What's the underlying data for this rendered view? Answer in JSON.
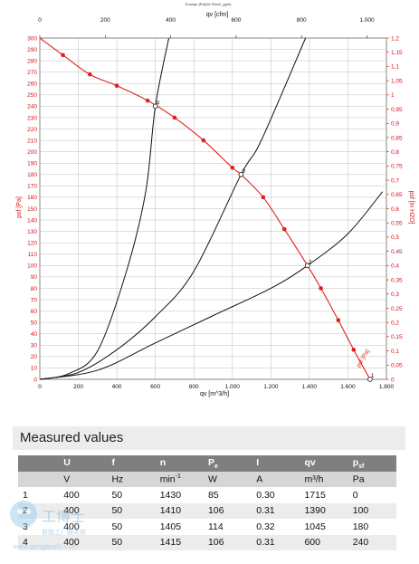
{
  "chart_data": {
    "type": "line",
    "title": "Druckpr [Pa]/Ve Flow/l_(gzh)",
    "x_bottom": {
      "label": "qv [m^3/h]",
      "range": [
        0,
        1800
      ],
      "ticks": [
        "0",
        "200",
        "400",
        "600",
        "800",
        "1.000",
        "1.200",
        "1.400",
        "1.600",
        "1.800"
      ]
    },
    "x_top": {
      "label": "qv [cfm]",
      "range": [
        0,
        1059
      ],
      "ticks": [
        "0",
        "200",
        "400",
        "600",
        "800",
        "1.000"
      ]
    },
    "y_left": {
      "label": "psf [Pa]",
      "range": [
        0,
        300
      ],
      "ticks": [
        "0",
        "10",
        "20",
        "30",
        "40",
        "50",
        "60",
        "70",
        "80",
        "90",
        "100",
        "110",
        "120",
        "130",
        "140",
        "150",
        "160",
        "170",
        "180",
        "190",
        "200",
        "210",
        "220",
        "230",
        "240",
        "250",
        "260",
        "270",
        "280",
        "290",
        "300"
      ]
    },
    "y_right": {
      "label": "psf [in H2O]",
      "range": [
        0,
        1.2
      ],
      "ticks": [
        "0",
        "0,05",
        "0,1",
        "0,15",
        "0,2",
        "0,25",
        "0,3",
        "0,35",
        "0,4",
        "0,45",
        "0,5",
        "0,55",
        "0,6",
        "0,65",
        "0,7",
        "0,75",
        "0,8",
        "0,85",
        "0,9",
        "0,95",
        "1",
        "1,05",
        "1,1",
        "1,15",
        "1,2"
      ]
    },
    "fan_curve": {
      "name": "psf [Pa]",
      "points": [
        [
          0,
          300
        ],
        [
          120,
          285
        ],
        [
          260,
          268
        ],
        [
          400,
          258
        ],
        [
          560,
          245
        ],
        [
          700,
          230
        ],
        [
          850,
          210
        ],
        [
          1000,
          186
        ],
        [
          1045,
          180
        ],
        [
          1160,
          160
        ],
        [
          1270,
          132
        ],
        [
          1390,
          100
        ],
        [
          1460,
          80
        ],
        [
          1550,
          52
        ],
        [
          1630,
          26
        ],
        [
          1715,
          0
        ]
      ]
    },
    "system_curves": [
      {
        "x": [
          0,
          150,
          300,
          450,
          550,
          600,
          670
        ],
        "y": [
          0,
          5,
          25,
          95,
          165,
          240,
          300
        ]
      },
      {
        "x": [
          0,
          200,
          400,
          600,
          800,
          1045,
          1150,
          1380
        ],
        "y": [
          0,
          6,
          26,
          55,
          95,
          180,
          210,
          300
        ]
      },
      {
        "x": [
          0,
          300,
          600,
          900,
          1200,
          1390,
          1600,
          1780
        ],
        "y": [
          0,
          8,
          32,
          56,
          80,
          100,
          128,
          165
        ]
      }
    ],
    "operating_points": [
      {
        "label": "1",
        "x": 1715,
        "y": 0
      },
      {
        "label": "2",
        "x": 1390,
        "y": 100
      },
      {
        "label": "3",
        "x": 1045,
        "y": 180
      },
      {
        "label": "4",
        "x": 600,
        "y": 240
      }
    ]
  },
  "table": {
    "title": "Measured values",
    "headers": [
      "",
      "U",
      "f",
      "n",
      "P",
      "I",
      "qv",
      "p"
    ],
    "header_subs": [
      "",
      "",
      "",
      "",
      "e",
      "",
      "",
      "sf"
    ],
    "units": [
      "",
      "V",
      "Hz",
      "min",
      "W",
      "A",
      "m³/h",
      "Pa"
    ],
    "unit_sups": [
      "",
      "",
      "",
      "-1",
      "",
      "",
      "",
      ""
    ],
    "rows": [
      [
        "1",
        "400",
        "50",
        "1430",
        "85",
        "0.30",
        "1715",
        "0"
      ],
      [
        "2",
        "400",
        "50",
        "1410",
        "106",
        "0.31",
        "1390",
        "100"
      ],
      [
        "3",
        "400",
        "50",
        "1405",
        "114",
        "0.32",
        "1045",
        "180"
      ],
      [
        "4",
        "400",
        "50",
        "1415",
        "106",
        "0.31",
        "600",
        "240"
      ]
    ]
  },
  "watermark": {
    "text": "工博士",
    "subtext": "智能工厂服务商",
    "url": "www.gongboshi.com"
  },
  "colors": {
    "fan": "#e0201b",
    "system": "#111111",
    "grid": "#bdbdbd",
    "axis_red": "#d4121a"
  }
}
